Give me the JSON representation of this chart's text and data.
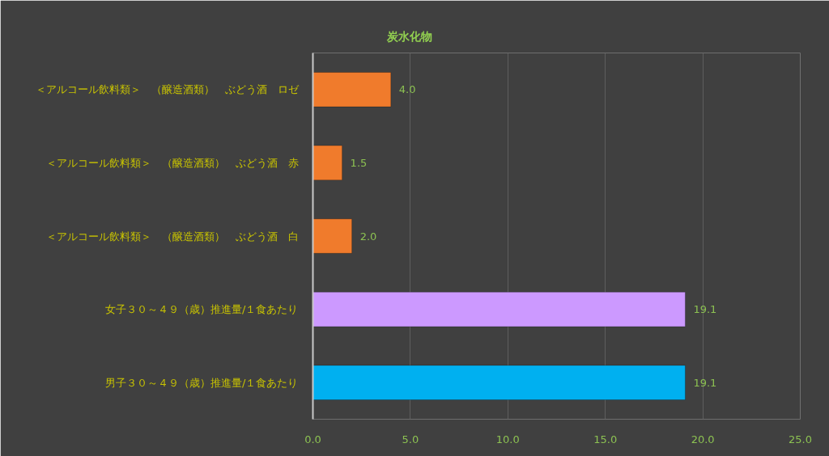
{
  "chart_data": {
    "type": "bar",
    "orientation": "horizontal",
    "title": "炭水化物",
    "categories": [
      "＜アルコール飲料類＞　（醸造酒類）　ぶどう酒　ロゼ",
      "＜アルコール飲料類＞　（醸造酒類）　ぶどう酒　赤",
      "＜アルコール飲料類＞　（醸造酒類）　ぶどう酒　白",
      "女子３０～４９（歳）推進量/１食あたり",
      "男子３０～４９（歳）推進量/１食あたり"
    ],
    "values": [
      4.0,
      1.5,
      2.0,
      19.1,
      19.1
    ],
    "colors": [
      "#f07b2c",
      "#f07b2c",
      "#f07b2c",
      "#cc99ff",
      "#00b0f0"
    ],
    "value_labels": [
      "4.0",
      "1.5",
      "2.0",
      "19.1",
      "19.1"
    ],
    "xlim": [
      0,
      25
    ],
    "xticks": [
      {
        "value": 0,
        "label": "0.0"
      },
      {
        "value": 5,
        "label": "5.0"
      },
      {
        "value": 10,
        "label": "10.0"
      },
      {
        "value": 15,
        "label": "15.0"
      },
      {
        "value": 20,
        "label": "20.0"
      },
      {
        "value": 25,
        "label": "25.0"
      }
    ],
    "grid": "x"
  }
}
